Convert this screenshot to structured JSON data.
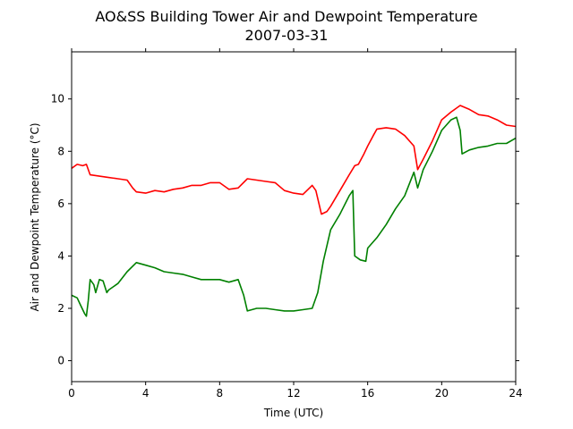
{
  "chart_data": {
    "type": "line",
    "title": "AO&SS Building Tower Air and Dewpoint Temperature",
    "subtitle": "2007-03-31",
    "xlabel": "Time (UTC)",
    "ylabel": "Air and Dewpoint Temperature (°C)",
    "xlim": [
      0,
      24
    ],
    "ylim": [
      -0.8,
      11.8
    ],
    "xticks": [
      0,
      4,
      8,
      12,
      16,
      20,
      24
    ],
    "yticks": [
      0,
      2,
      4,
      6,
      8,
      10
    ],
    "grid": false,
    "legend": "none",
    "series": [
      {
        "color": "#ff0000",
        "x": [
          0,
          0.3,
          0.6,
          0.8,
          1.0,
          1.5,
          2.0,
          2.5,
          3.0,
          3.3,
          3.5,
          4.0,
          4.5,
          5.0,
          5.5,
          6.0,
          6.5,
          7.0,
          7.5,
          8.0,
          8.5,
          9.0,
          9.5,
          10.0,
          10.5,
          11.0,
          11.5,
          12.0,
          12.5,
          13.0,
          13.2,
          13.5,
          13.8,
          14.0,
          14.5,
          15.0,
          15.3,
          15.5,
          15.8,
          16.0,
          16.3,
          16.5,
          17.0,
          17.5,
          18.0,
          18.5,
          18.7,
          19.0,
          19.5,
          20.0,
          20.5,
          21.0,
          21.5,
          22.0,
          22.5,
          23.0,
          23.5,
          24.0
        ],
        "y": [
          7.35,
          7.5,
          7.45,
          7.5,
          7.1,
          7.05,
          7.0,
          6.95,
          6.9,
          6.6,
          6.45,
          6.4,
          6.5,
          6.45,
          6.55,
          6.6,
          6.7,
          6.7,
          6.8,
          6.8,
          6.55,
          6.6,
          6.95,
          6.9,
          6.85,
          6.8,
          6.5,
          6.4,
          6.35,
          6.7,
          6.5,
          5.6,
          5.7,
          5.9,
          6.5,
          7.1,
          7.45,
          7.5,
          7.9,
          8.2,
          8.6,
          8.85,
          8.9,
          8.85,
          8.6,
          8.2,
          7.3,
          7.7,
          8.4,
          9.2,
          9.5,
          9.75,
          9.6,
          9.4,
          9.35,
          9.2,
          9.0,
          8.95
        ]
      },
      {
        "color": "#008000",
        "x": [
          0,
          0.3,
          0.5,
          0.7,
          0.8,
          0.9,
          1.0,
          1.2,
          1.3,
          1.5,
          1.7,
          1.9,
          2.0,
          2.5,
          3.0,
          3.5,
          4.0,
          4.5,
          5.0,
          5.5,
          6.0,
          6.5,
          7.0,
          7.5,
          8.0,
          8.5,
          9.0,
          9.3,
          9.5,
          10.0,
          10.5,
          11.0,
          11.5,
          12.0,
          12.5,
          13.0,
          13.3,
          13.6,
          14.0,
          14.5,
          15.0,
          15.2,
          15.3,
          15.6,
          15.9,
          16.0,
          16.5,
          17.0,
          17.5,
          18.0,
          18.5,
          18.7,
          19.0,
          19.5,
          20.0,
          20.5,
          20.8,
          21.0,
          21.1,
          21.5,
          22.0,
          22.5,
          23.0,
          23.5,
          24.0
        ],
        "y": [
          2.5,
          2.4,
          2.1,
          1.8,
          1.7,
          2.3,
          3.1,
          2.9,
          2.6,
          3.1,
          3.05,
          2.6,
          2.7,
          2.95,
          3.4,
          3.75,
          3.65,
          3.55,
          3.4,
          3.35,
          3.3,
          3.2,
          3.1,
          3.1,
          3.1,
          3.0,
          3.1,
          2.5,
          1.9,
          2.0,
          2.0,
          1.95,
          1.9,
          1.9,
          1.95,
          2.0,
          2.6,
          3.8,
          5.0,
          5.6,
          6.3,
          6.5,
          4.0,
          3.85,
          3.8,
          4.3,
          4.7,
          5.2,
          5.8,
          6.3,
          7.2,
          6.6,
          7.3,
          8.0,
          8.8,
          9.2,
          9.3,
          8.8,
          7.9,
          8.05,
          8.15,
          8.2,
          8.3,
          8.3,
          8.5
        ]
      }
    ]
  }
}
